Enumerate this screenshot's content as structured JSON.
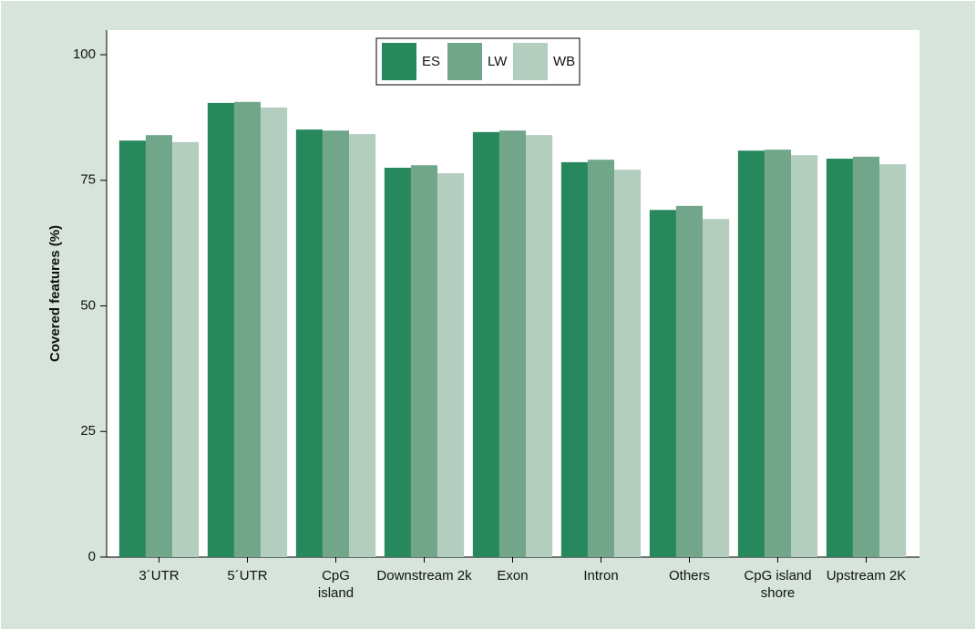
{
  "chart_data": {
    "type": "bar",
    "y_label": "Covered features (%)",
    "categories": [
      "3´UTR",
      "5´UTR",
      "CpG\nisland",
      "Downstream 2k",
      "Exon",
      "Intron",
      "Others",
      "CpG island\nshore",
      "Upstream 2K"
    ],
    "series": [
      {
        "name": "ES",
        "color": "#27875d",
        "values": [
          82.9,
          90.4,
          85.1,
          77.5,
          84.6,
          78.6,
          69.1,
          80.9,
          79.3
        ]
      },
      {
        "name": "LW",
        "color": "#72a68a",
        "values": [
          84.0,
          90.6,
          84.9,
          78.0,
          84.9,
          79.1,
          69.9,
          81.1,
          79.7
        ]
      },
      {
        "name": "WB",
        "color": "#b3cdbf",
        "values": [
          82.6,
          89.5,
          84.2,
          76.4,
          84.0,
          77.1,
          67.3,
          80.0,
          78.2
        ]
      }
    ],
    "ylim": [
      0,
      100
    ],
    "yticks": [
      0,
      25,
      50,
      75,
      100
    ],
    "legend": "top-center"
  }
}
